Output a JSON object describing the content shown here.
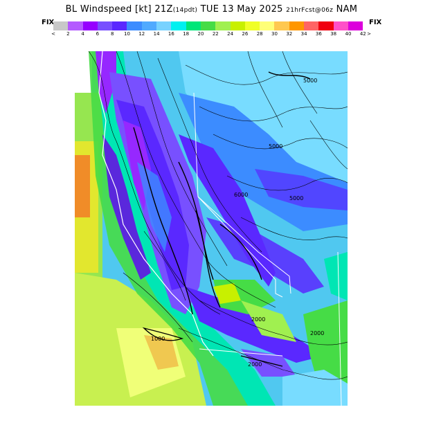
{
  "header": {
    "title_main": "BL Windspeed [kt] 21Z",
    "title_local": "(14pdt)",
    "title_date": " TUE 13 May 2025 ",
    "title_fcst": "21hrFcst@06z",
    "title_model": " NAM"
  },
  "legend": {
    "fix_left": "FIX",
    "fix_right": "FIX",
    "under_label": "<",
    "over_label": ">",
    "ticks": [
      "2",
      "4",
      "6",
      "8",
      "10",
      "12",
      "14",
      "16",
      "18",
      "20",
      "22",
      "24",
      "26",
      "28",
      "30",
      "32",
      "34",
      "36",
      "38",
      "40",
      "42"
    ],
    "colors": [
      "#c8c8c8",
      "#b45aff",
      "#9600ff",
      "#7850ff",
      "#5a28ff",
      "#3c8cff",
      "#50aaff",
      "#78d2ff",
      "#00f0f0",
      "#00e678",
      "#46dc46",
      "#a0f050",
      "#c8f000",
      "#f0ff28",
      "#ffff78",
      "#ffc850",
      "#ff9600",
      "#ff6464",
      "#f0000f",
      "#ff50c8",
      "#dc00dc"
    ]
  },
  "map": {
    "contour_labels": [
      "5000",
      "5000",
      "6000",
      "5000",
      "2000",
      "2000",
      "2000",
      "1000"
    ],
    "colors": {
      "ocean_far": "#f08c28",
      "ocean_mid": "#f0e628",
      "ocean_light": "#c8f050",
      "ocean_green": "#96e650",
      "coast_green": "#46dc46",
      "teal": "#00e6b4",
      "cyan": "#50c8f0",
      "blue": "#3c8cff",
      "violet": "#7850ff",
      "purple": "#9628ff",
      "deep_blue": "#5a28dc",
      "light_cyan": "#78dcff"
    }
  }
}
